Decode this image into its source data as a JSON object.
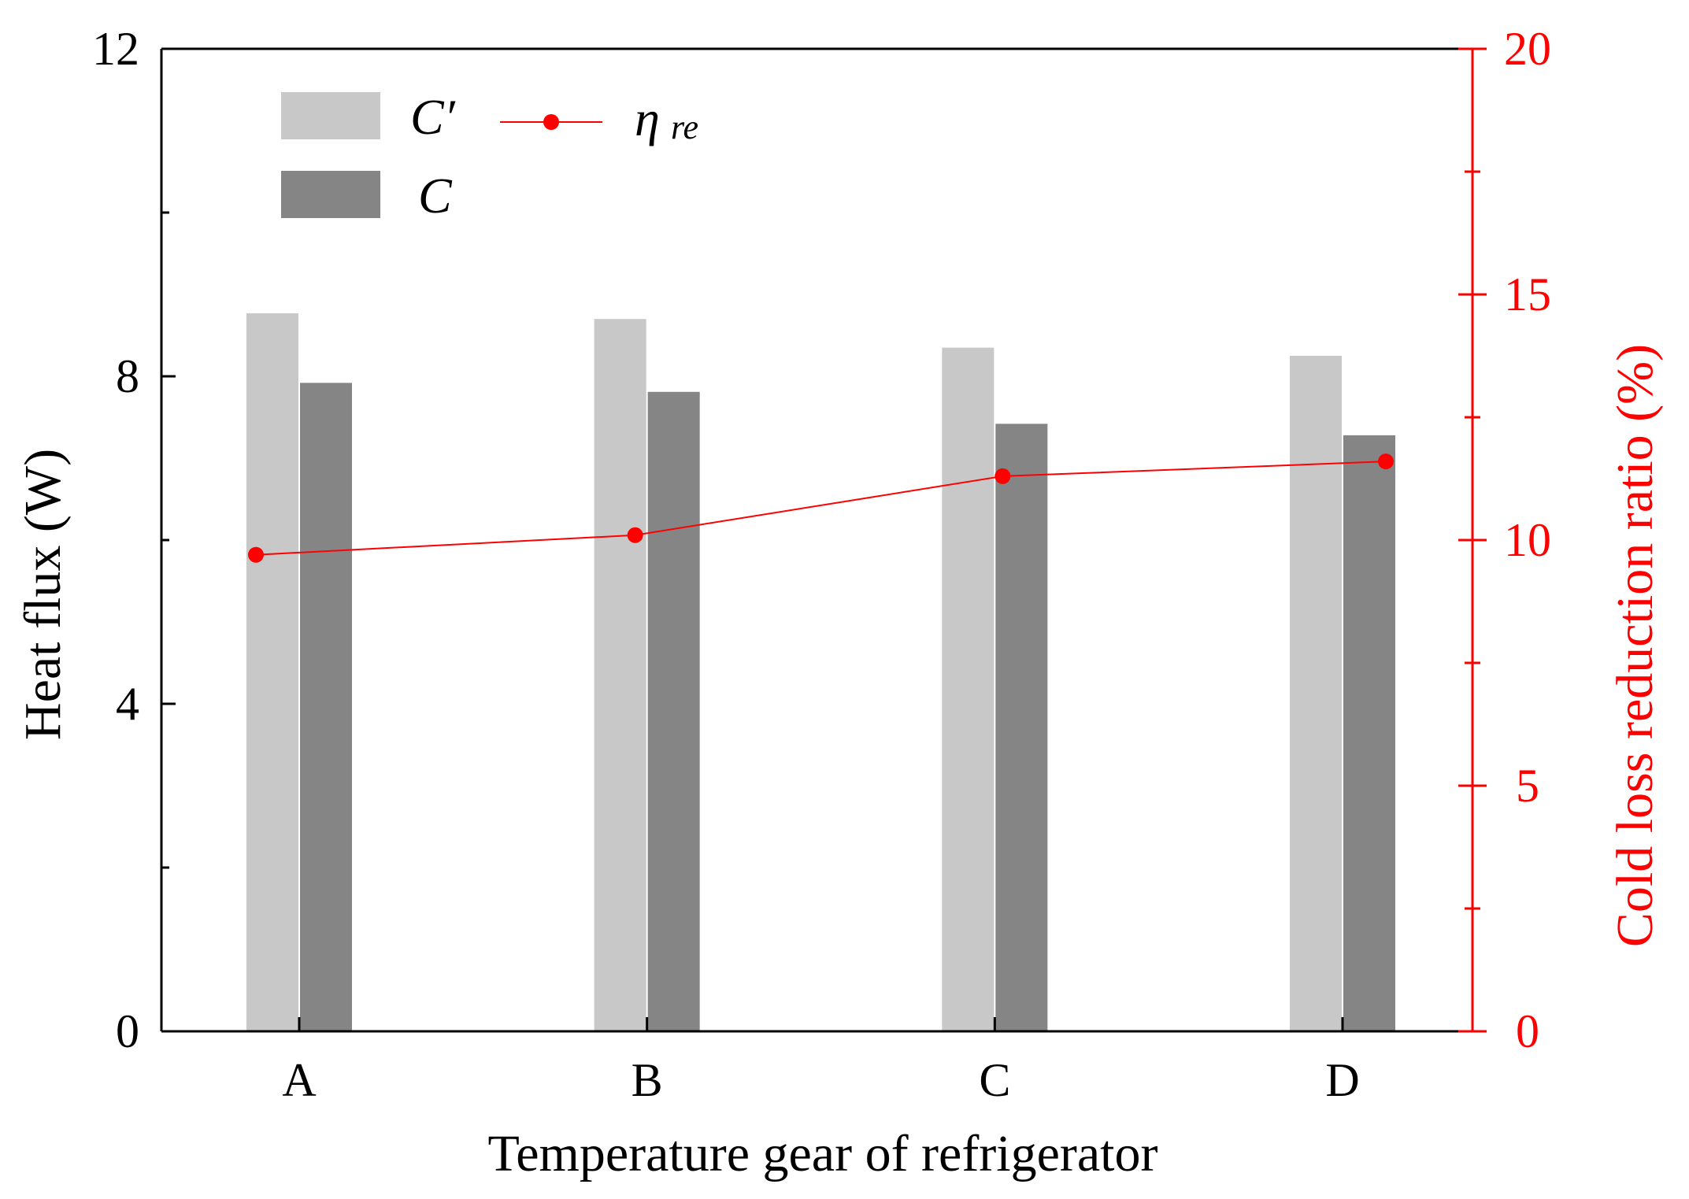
{
  "chart_data": {
    "type": "bar",
    "title": "",
    "xlabel": "Temperature gear of refrigerator",
    "ylabel": "Heat flux (W)",
    "y2label": "Cold loss reduction ratio (%)",
    "categories": [
      "A",
      "B",
      "C",
      "D"
    ],
    "ylim": [
      0,
      12
    ],
    "yticks": [
      "0",
      "4",
      "8",
      "12"
    ],
    "y2lim": [
      0,
      20
    ],
    "y2ticks": [
      "0",
      "5",
      "10",
      "15",
      "20"
    ],
    "series": [
      {
        "name": "C′",
        "kind": "bar",
        "axis": "left",
        "color": "#c8c8c8",
        "values": [
          8.77,
          8.7,
          8.35,
          8.25
        ]
      },
      {
        "name": "C",
        "kind": "bar",
        "axis": "left",
        "color": "#858585",
        "values": [
          7.92,
          7.81,
          7.42,
          7.28
        ]
      },
      {
        "name": "η",
        "subscript": "re",
        "kind": "line",
        "axis": "right",
        "color": "#ff0000",
        "values": [
          9.7,
          10.1,
          11.3,
          11.6
        ]
      }
    ],
    "legend_position": "top-left",
    "grid": false
  },
  "colors": {
    "axis": "#000000",
    "right_axis": "#ff0000",
    "bar_light": "#c8c8c8",
    "bar_dark": "#858585",
    "line": "#ff0000"
  }
}
